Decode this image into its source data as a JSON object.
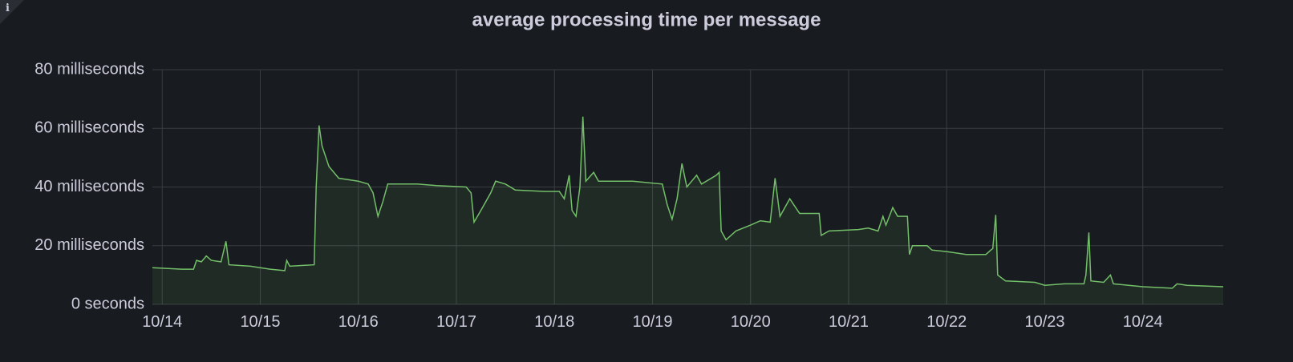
{
  "chart_data": {
    "type": "line",
    "title": "average processing time per message",
    "x": [
      13.9,
      14.2,
      14.32,
      14.35,
      14.4,
      14.45,
      14.5,
      14.6,
      14.65,
      14.68,
      14.9,
      15.1,
      15.25,
      15.27,
      15.3,
      15.55,
      15.57,
      15.6,
      15.63,
      15.7,
      15.8,
      16.0,
      16.1,
      16.15,
      16.2,
      16.25,
      16.3,
      16.4,
      16.6,
      16.8,
      17.1,
      17.15,
      17.18,
      17.25,
      17.35,
      17.4,
      17.5,
      17.6,
      17.9,
      18.05,
      18.1,
      18.15,
      18.18,
      18.22,
      18.26,
      18.29,
      18.32,
      18.4,
      18.45,
      18.8,
      19.1,
      19.15,
      19.2,
      19.25,
      19.3,
      19.35,
      19.45,
      19.5,
      19.65,
      19.68,
      19.7,
      19.75,
      19.85,
      20.0,
      20.1,
      20.2,
      20.25,
      20.3,
      20.4,
      20.5,
      20.7,
      20.72,
      20.8,
      21.1,
      21.2,
      21.3,
      21.35,
      21.38,
      21.45,
      21.5,
      21.6,
      21.62,
      21.65,
      21.8,
      21.85,
      22.0,
      22.2,
      22.4,
      22.45,
      22.47,
      22.5,
      22.52,
      22.6,
      22.9,
      23.0,
      23.2,
      23.4,
      23.42,
      23.45,
      23.47,
      23.6,
      23.67,
      23.7,
      24.0,
      24.3,
      24.35,
      24.45,
      24.82
    ],
    "series": [
      {
        "color": "#73bf69",
        "values": [
          12.5,
          12,
          12,
          15,
          14.5,
          16.5,
          15,
          14.5,
          21.5,
          13.5,
          13,
          12,
          11.5,
          15,
          13,
          13.5,
          40,
          61,
          54,
          47,
          43,
          42,
          41,
          38,
          30,
          35,
          41,
          41,
          41,
          40.5,
          40,
          38,
          28,
          32,
          38,
          42,
          41,
          39,
          38.5,
          38.5,
          36,
          44,
          32,
          30,
          40,
          64,
          42,
          45,
          42,
          42,
          41,
          34,
          29,
          36,
          48,
          40,
          44,
          41,
          44,
          45,
          25,
          22,
          25,
          27,
          28.5,
          28,
          43,
          30,
          36,
          31,
          31,
          23.5,
          25,
          25.5,
          26,
          25,
          30,
          27,
          33,
          30,
          30,
          17,
          20,
          20,
          18.5,
          18,
          17,
          17,
          18.5,
          19,
          30.5,
          10,
          8,
          7.5,
          6.5,
          7,
          7,
          10,
          24.5,
          8,
          7.5,
          10,
          7,
          6,
          5.5,
          7,
          6.5,
          6
        ]
      }
    ],
    "xlim": [
      13.9,
      24.82
    ],
    "xticks": [
      {
        "value": 14,
        "label": "10/14"
      },
      {
        "value": 15,
        "label": "10/15"
      },
      {
        "value": 16,
        "label": "10/16"
      },
      {
        "value": 17,
        "label": "10/17"
      },
      {
        "value": 18,
        "label": "10/18"
      },
      {
        "value": 19,
        "label": "10/19"
      },
      {
        "value": 20,
        "label": "10/20"
      },
      {
        "value": 21,
        "label": "10/21"
      },
      {
        "value": 22,
        "label": "10/22"
      },
      {
        "value": 23,
        "label": "10/23"
      },
      {
        "value": 24,
        "label": "10/24"
      }
    ],
    "ylim": [
      0,
      80
    ],
    "yticks": [
      {
        "value": 0,
        "label": "0 seconds"
      },
      {
        "value": 20,
        "label": "20 milliseconds"
      },
      {
        "value": 40,
        "label": "40 milliseconds"
      },
      {
        "value": 60,
        "label": "60 milliseconds"
      },
      {
        "value": 80,
        "label": "80 milliseconds"
      }
    ],
    "grid": true
  }
}
